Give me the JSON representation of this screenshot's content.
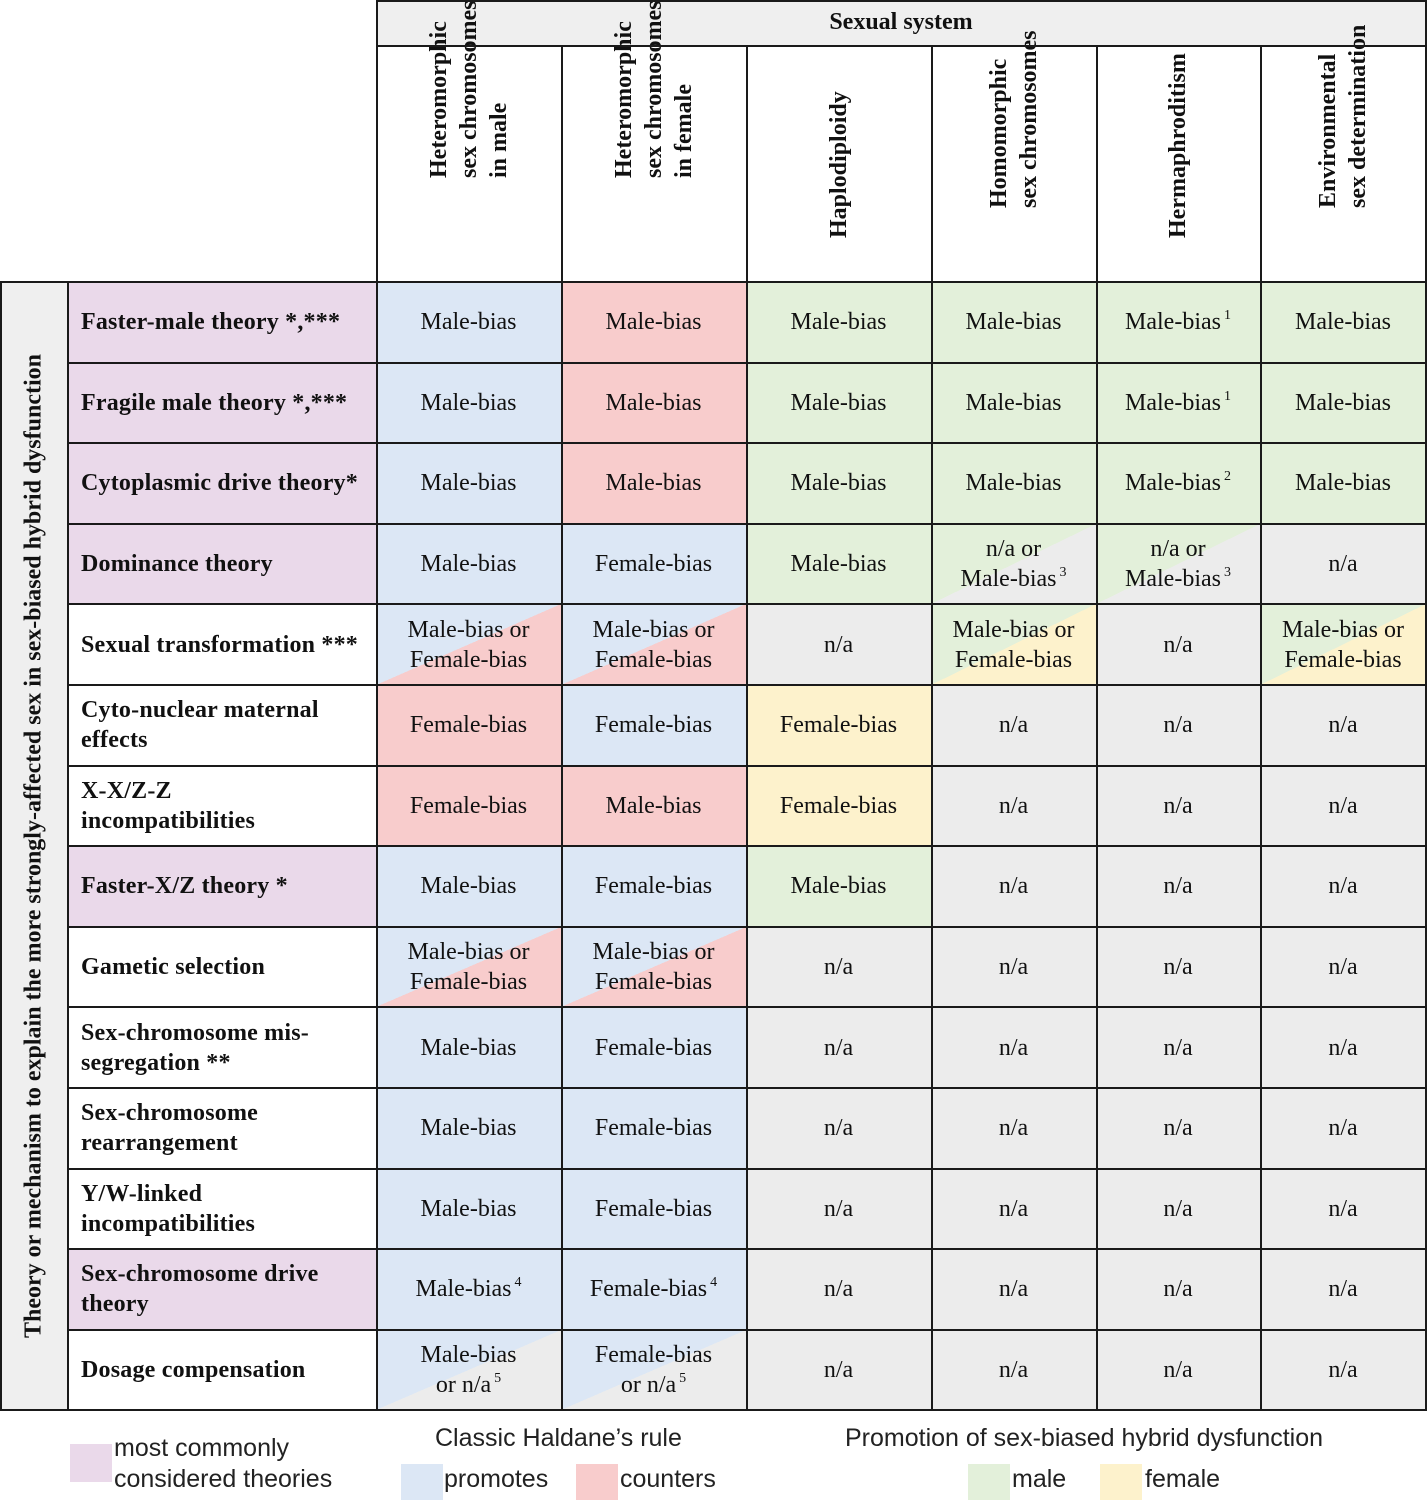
{
  "colors": {
    "blue": "#dce7f5",
    "red": "#f8cccc",
    "green": "#e3f0da",
    "yellow": "#fdf2cc",
    "gray": "#ececec",
    "purple": "#ead9ea",
    "white": "#ffffff"
  },
  "table": {
    "group_title": "Sexual system",
    "side_title": "Theory or mechanism to explain the more strongly-affected sex in sex-biased hybrid dysfunction",
    "columns": [
      "Heteromorphic\nsex chromosomes\nin male",
      "Heteromorphic\nsex chromosomes\nin female",
      "Haplodiploidy",
      "Homomorphic\nsex chromosomes",
      "Hermaphroditism",
      "Environmental\nsex determination"
    ],
    "rows": [
      {
        "label": "Faster-male theory *,***",
        "highlight": true,
        "cells": [
          {
            "text": "Male-bias",
            "color": "blue"
          },
          {
            "text": "Male-bias",
            "color": "red"
          },
          {
            "text": "Male-bias",
            "color": "green"
          },
          {
            "text": "Male-bias",
            "color": "green"
          },
          {
            "text": "Male-bias",
            "sup": "1",
            "color": "green"
          },
          {
            "text": "Male-bias",
            "color": "green"
          }
        ]
      },
      {
        "label": "Fragile male theory *,***",
        "highlight": true,
        "cells": [
          {
            "text": "Male-bias",
            "color": "blue"
          },
          {
            "text": "Male-bias",
            "color": "red"
          },
          {
            "text": "Male-bias",
            "color": "green"
          },
          {
            "text": "Male-bias",
            "color": "green"
          },
          {
            "text": "Male-bias",
            "sup": "1",
            "color": "green"
          },
          {
            "text": "Male-bias",
            "color": "green"
          }
        ]
      },
      {
        "label": "Cytoplasmic drive theory*",
        "highlight": true,
        "cells": [
          {
            "text": "Male-bias",
            "color": "blue"
          },
          {
            "text": "Male-bias",
            "color": "red"
          },
          {
            "text": "Male-bias",
            "color": "green"
          },
          {
            "text": "Male-bias",
            "color": "green"
          },
          {
            "text": "Male-bias",
            "sup": "2",
            "color": "green"
          },
          {
            "text": "Male-bias",
            "color": "green"
          }
        ]
      },
      {
        "label": "Dominance theory",
        "highlight": true,
        "cells": [
          {
            "text": "Male-bias",
            "color": "blue"
          },
          {
            "text": "Female-bias",
            "color": "blue"
          },
          {
            "text": "Male-bias",
            "color": "green"
          },
          {
            "text": "n/a or\nMale-bias",
            "sup": "3",
            "color": "green",
            "color2": "gray"
          },
          {
            "text": "n/a or\nMale-bias",
            "sup": "3",
            "color": "green",
            "color2": "gray"
          },
          {
            "text": "n/a",
            "color": "gray"
          }
        ]
      },
      {
        "label": "Sexual transformation ***",
        "highlight": false,
        "cells": [
          {
            "text": "Male-bias or\nFemale-bias",
            "color": "blue",
            "color2": "red"
          },
          {
            "text": "Male-bias or\nFemale-bias",
            "color": "blue",
            "color2": "red"
          },
          {
            "text": "n/a",
            "color": "gray"
          },
          {
            "text": "Male-bias or\nFemale-bias",
            "color": "green",
            "color2": "yellow"
          },
          {
            "text": "n/a",
            "color": "gray"
          },
          {
            "text": "Male-bias or\nFemale-bias",
            "color": "green",
            "color2": "yellow"
          }
        ]
      },
      {
        "label": "Cyto-nuclear maternal\neffects",
        "highlight": false,
        "cells": [
          {
            "text": "Female-bias",
            "color": "red"
          },
          {
            "text": "Female-bias",
            "color": "blue"
          },
          {
            "text": "Female-bias",
            "color": "yellow"
          },
          {
            "text": "n/a",
            "color": "gray"
          },
          {
            "text": "n/a",
            "color": "gray"
          },
          {
            "text": "n/a",
            "color": "gray"
          }
        ]
      },
      {
        "label": "X-X/Z-Z\nincompatibilities",
        "highlight": false,
        "cells": [
          {
            "text": "Female-bias",
            "color": "red"
          },
          {
            "text": "Male-bias",
            "color": "red"
          },
          {
            "text": "Female-bias",
            "color": "yellow"
          },
          {
            "text": "n/a",
            "color": "gray"
          },
          {
            "text": "n/a",
            "color": "gray"
          },
          {
            "text": "n/a",
            "color": "gray"
          }
        ]
      },
      {
        "label": "Faster-X/Z theory *",
        "highlight": true,
        "cells": [
          {
            "text": "Male-bias",
            "color": "blue"
          },
          {
            "text": "Female-bias",
            "color": "blue"
          },
          {
            "text": "Male-bias",
            "color": "green"
          },
          {
            "text": "n/a",
            "color": "gray"
          },
          {
            "text": "n/a",
            "color": "gray"
          },
          {
            "text": "n/a",
            "color": "gray"
          }
        ]
      },
      {
        "label": "Gametic selection",
        "highlight": false,
        "cells": [
          {
            "text": "Male-bias or\nFemale-bias",
            "color": "blue",
            "color2": "red"
          },
          {
            "text": "Male-bias or\nFemale-bias",
            "color": "blue",
            "color2": "red"
          },
          {
            "text": "n/a",
            "color": "gray"
          },
          {
            "text": "n/a",
            "color": "gray"
          },
          {
            "text": "n/a",
            "color": "gray"
          },
          {
            "text": "n/a",
            "color": "gray"
          }
        ]
      },
      {
        "label": "Sex-chromosome mis-\nsegregation **",
        "highlight": false,
        "cells": [
          {
            "text": "Male-bias",
            "color": "blue"
          },
          {
            "text": "Female-bias",
            "color": "blue"
          },
          {
            "text": "n/a",
            "color": "gray"
          },
          {
            "text": "n/a",
            "color": "gray"
          },
          {
            "text": "n/a",
            "color": "gray"
          },
          {
            "text": "n/a",
            "color": "gray"
          }
        ]
      },
      {
        "label": "Sex-chromosome\nrearrangement",
        "highlight": false,
        "cells": [
          {
            "text": "Male-bias",
            "color": "blue"
          },
          {
            "text": "Female-bias",
            "color": "blue"
          },
          {
            "text": "n/a",
            "color": "gray"
          },
          {
            "text": "n/a",
            "color": "gray"
          },
          {
            "text": "n/a",
            "color": "gray"
          },
          {
            "text": "n/a",
            "color": "gray"
          }
        ]
      },
      {
        "label": "Y/W-linked\nincompatibilities",
        "highlight": false,
        "cells": [
          {
            "text": "Male-bias",
            "color": "blue"
          },
          {
            "text": "Female-bias",
            "color": "blue"
          },
          {
            "text": "n/a",
            "color": "gray"
          },
          {
            "text": "n/a",
            "color": "gray"
          },
          {
            "text": "n/a",
            "color": "gray"
          },
          {
            "text": "n/a",
            "color": "gray"
          }
        ]
      },
      {
        "label": "Sex-chromosome drive\ntheory",
        "highlight": true,
        "cells": [
          {
            "text": "Male-bias",
            "sup": "4",
            "color": "blue"
          },
          {
            "text": "Female-bias",
            "sup": "4",
            "color": "blue"
          },
          {
            "text": "n/a",
            "color": "gray"
          },
          {
            "text": "n/a",
            "color": "gray"
          },
          {
            "text": "n/a",
            "color": "gray"
          },
          {
            "text": "n/a",
            "color": "gray"
          }
        ]
      },
      {
        "label": "Dosage compensation",
        "highlight": false,
        "cells": [
          {
            "text": "Male-bias\nor n/a",
            "sup": "5",
            "color": "blue",
            "color2": "gray"
          },
          {
            "text": "Female-bias\nor n/a",
            "sup": "5",
            "color": "blue",
            "color2": "gray"
          },
          {
            "text": "n/a",
            "color": "gray"
          },
          {
            "text": "n/a",
            "color": "gray"
          },
          {
            "text": "n/a",
            "color": "gray"
          },
          {
            "text": "n/a",
            "color": "gray"
          }
        ]
      }
    ]
  },
  "legend": {
    "highlight_label": "most commonly\nconsidered theories",
    "haldane_title": "Classic Haldane’s rule",
    "promotes_label": "promotes",
    "counters_label": "counters",
    "promotion_title": "Promotion of sex-biased hybrid dysfunction",
    "male_label": "male",
    "female_label": "female"
  }
}
